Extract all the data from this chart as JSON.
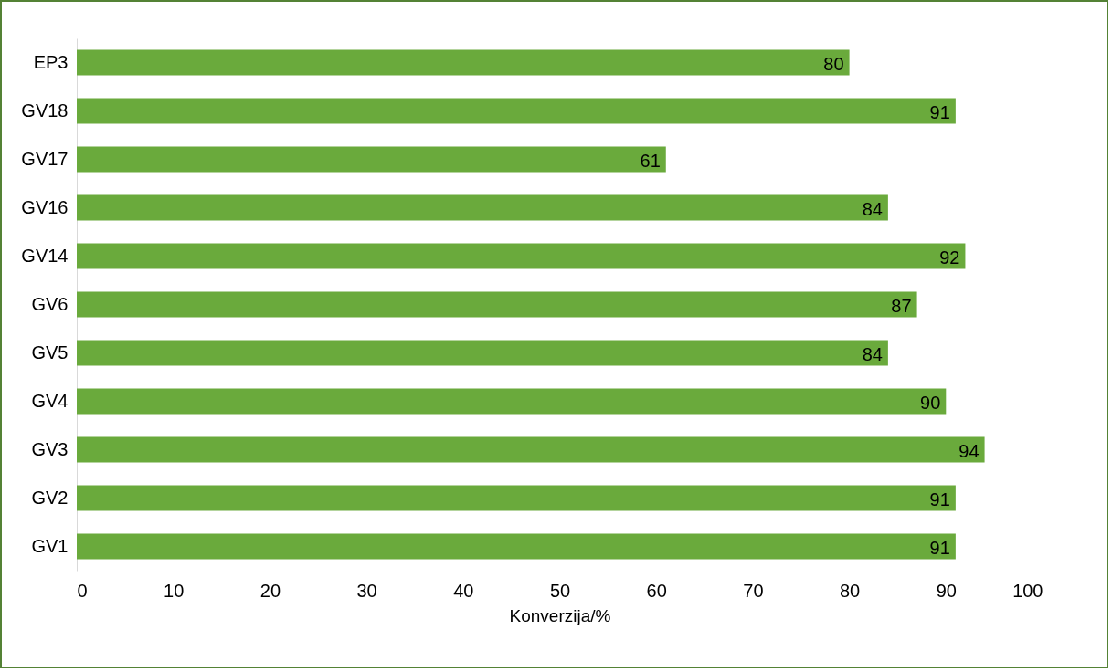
{
  "chart_data": {
    "type": "bar",
    "orientation": "horizontal",
    "xlabel": "Konverzija/%",
    "categories": [
      "EP3",
      "GV18",
      "GV17",
      "GV16",
      "GV14",
      "GV6",
      "GV5",
      "GV4",
      "GV3",
      "GV2",
      "GV1"
    ],
    "values": [
      80,
      91,
      61,
      84,
      92,
      87,
      84,
      90,
      94,
      91,
      91
    ],
    "color": "#6aaa3c",
    "xlim": [
      0,
      100
    ],
    "xticks": [
      0,
      10,
      20,
      30,
      40,
      50,
      60,
      70,
      80,
      90,
      100
    ],
    "data_labels": true
  }
}
